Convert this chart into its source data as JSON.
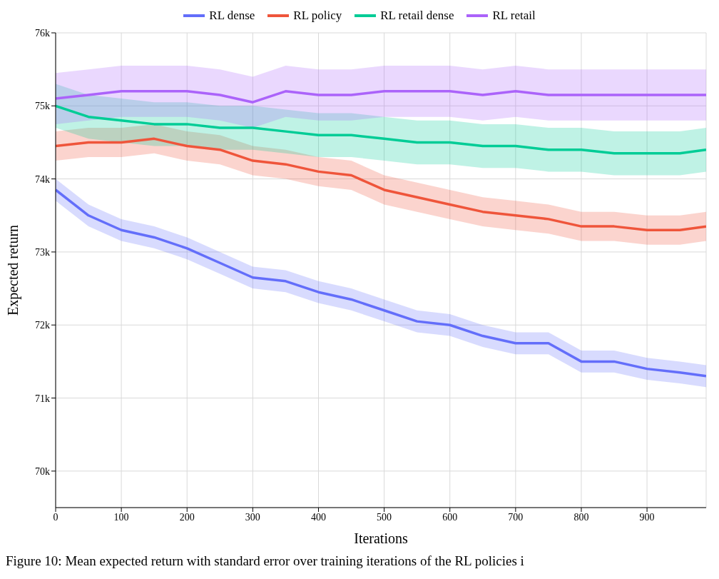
{
  "chart_data": {
    "type": "line",
    "xlabel": "Iterations",
    "ylabel": "Expected return",
    "annotations": [
      "Figure 10: Mean expected return with standard error over training iterations of the RL policies i"
    ],
    "x": [
      0,
      50,
      100,
      150,
      200,
      250,
      300,
      350,
      400,
      450,
      500,
      550,
      600,
      650,
      700,
      750,
      800,
      850,
      900,
      950,
      990
    ],
    "series": [
      {
        "name": "RL dense",
        "color": "#636efa",
        "values": [
          73850,
          73500,
          73300,
          73200,
          73050,
          72850,
          72650,
          72600,
          72450,
          72350,
          72200,
          72050,
          72000,
          71850,
          71750,
          71750,
          71500,
          71500,
          71400,
          71350,
          71300
        ],
        "lower": [
          73700,
          73350,
          73150,
          73050,
          72900,
          72700,
          72500,
          72450,
          72300,
          72200,
          72050,
          71900,
          71850,
          71700,
          71600,
          71600,
          71350,
          71350,
          71250,
          71200,
          71150
        ],
        "upper": [
          74000,
          73650,
          73450,
          73350,
          73200,
          73000,
          72800,
          72750,
          72600,
          72500,
          72350,
          72200,
          72150,
          72000,
          71900,
          71900,
          71650,
          71650,
          71550,
          71500,
          71450
        ]
      },
      {
        "name": "RL policy",
        "color": "#ef553b",
        "values": [
          74450,
          74500,
          74500,
          74550,
          74450,
          74400,
          74250,
          74200,
          74100,
          74050,
          73850,
          73750,
          73650,
          73550,
          73500,
          73450,
          73350,
          73350,
          73300,
          73300,
          73350
        ],
        "lower": [
          74250,
          74300,
          74300,
          74350,
          74250,
          74200,
          74050,
          74000,
          73900,
          73850,
          73650,
          73550,
          73450,
          73350,
          73300,
          73250,
          73150,
          73150,
          73100,
          73100,
          73150
        ],
        "upper": [
          74650,
          74700,
          74700,
          74750,
          74650,
          74600,
          74450,
          74400,
          74300,
          74250,
          74050,
          73950,
          73850,
          73750,
          73700,
          73650,
          73550,
          73550,
          73500,
          73500,
          73550
        ]
      },
      {
        "name": "RL retail dense",
        "color": "#00cc96",
        "values": [
          75000,
          74850,
          74800,
          74750,
          74750,
          74700,
          74700,
          74650,
          74600,
          74600,
          74550,
          74500,
          74500,
          74450,
          74450,
          74400,
          74400,
          74350,
          74350,
          74350,
          74400
        ],
        "lower": [
          74700,
          74550,
          74500,
          74450,
          74450,
          74400,
          74400,
          74350,
          74300,
          74300,
          74250,
          74200,
          74200,
          74150,
          74150,
          74100,
          74100,
          74050,
          74050,
          74050,
          74100
        ],
        "upper": [
          75300,
          75150,
          75100,
          75050,
          75050,
          75000,
          75000,
          74950,
          74900,
          74900,
          74850,
          74800,
          74800,
          74750,
          74750,
          74700,
          74700,
          74650,
          74650,
          74650,
          74700
        ]
      },
      {
        "name": "RL retail",
        "color": "#ab63fa",
        "values": [
          75100,
          75150,
          75200,
          75200,
          75200,
          75150,
          75050,
          75200,
          75150,
          75150,
          75200,
          75200,
          75200,
          75150,
          75200,
          75150,
          75150,
          75150,
          75150,
          75150,
          75150
        ],
        "lower": [
          74750,
          74800,
          74850,
          74850,
          74850,
          74800,
          74700,
          74850,
          74800,
          74800,
          74850,
          74850,
          74850,
          74800,
          74850,
          74800,
          74800,
          74800,
          74800,
          74800,
          74800
        ],
        "upper": [
          75450,
          75500,
          75550,
          75550,
          75550,
          75500,
          75400,
          75550,
          75500,
          75500,
          75550,
          75550,
          75550,
          75500,
          75550,
          75500,
          75500,
          75500,
          75500,
          75500,
          75500
        ]
      }
    ],
    "xlim": [
      0,
      990
    ],
    "xticks": [
      0,
      100,
      200,
      300,
      400,
      500,
      600,
      700,
      800,
      900
    ],
    "ylim": [
      69500,
      76000
    ],
    "yticks": [
      {
        "value": 70000,
        "label": "70k"
      },
      {
        "value": 71000,
        "label": "71k"
      },
      {
        "value": 72000,
        "label": "72k"
      },
      {
        "value": 73000,
        "label": "73k"
      },
      {
        "value": 74000,
        "label": "74k"
      },
      {
        "value": 75000,
        "label": "75k"
      },
      {
        "value": 76000,
        "label": "76k"
      }
    ],
    "grid": true,
    "legend": "top",
    "marker": "none",
    "line_style": "solid"
  }
}
